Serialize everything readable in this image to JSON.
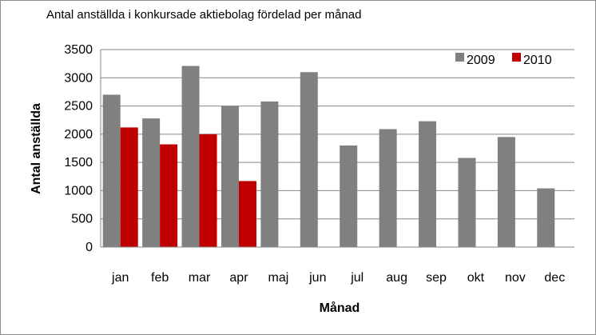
{
  "chart_data": {
    "type": "bar",
    "title": "Antal anställda i konkursade aktiebolag fördelad per månad",
    "xlabel": "Månad",
    "ylabel": "Antal anställda",
    "categories": [
      "jan",
      "feb",
      "mar",
      "apr",
      "maj",
      "jun",
      "jul",
      "aug",
      "sep",
      "okt",
      "nov",
      "dec"
    ],
    "series": [
      {
        "name": "2009",
        "color": "#808080",
        "values": [
          2700,
          2280,
          3210,
          2500,
          2580,
          3100,
          1800,
          2090,
          2230,
          1580,
          1950,
          1040
        ]
      },
      {
        "name": "2010",
        "color": "#c00000",
        "values": [
          2120,
          1820,
          2000,
          1170,
          null,
          null,
          null,
          null,
          null,
          null,
          null,
          null
        ]
      }
    ],
    "ylim": [
      0,
      3500
    ],
    "yticks": [
      0,
      500,
      1000,
      1500,
      2000,
      2500,
      3000,
      3500
    ],
    "ytick_labels": [
      "0",
      "500",
      "1000",
      "1500",
      "2000",
      "2500",
      "3000",
      "3500"
    ],
    "grid": true,
    "legend_position": "top-right"
  }
}
